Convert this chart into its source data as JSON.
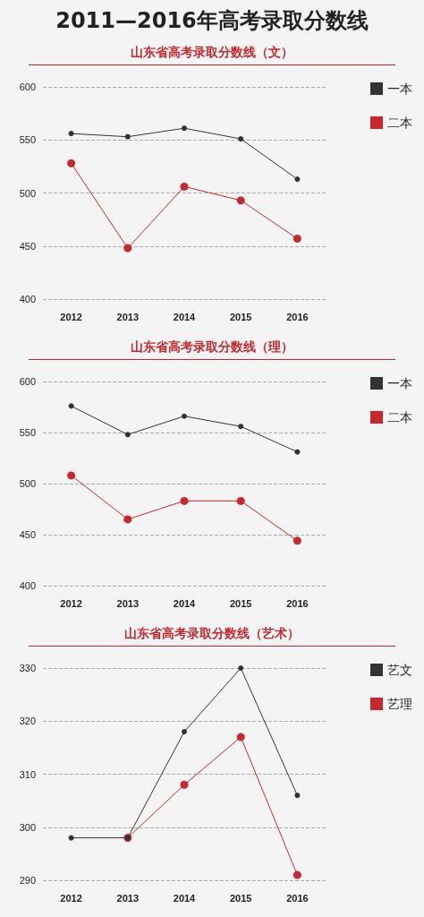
{
  "chart_data": [
    {
      "type": "line",
      "title": "2011—2016年高考录取分数线",
      "subtitle": "山东省高考录取分数线（文）",
      "categories": [
        "2012",
        "2013",
        "2014",
        "2015",
        "2016"
      ],
      "series": [
        {
          "name": "一本",
          "color": "#333333",
          "values": [
            556,
            553,
            561,
            551,
            513
          ]
        },
        {
          "name": "二本",
          "color": "#c8282d",
          "values": [
            528,
            448,
            506,
            493,
            457
          ]
        }
      ],
      "ylim": [
        400,
        600
      ],
      "yticks": [
        400,
        450,
        500,
        550,
        600
      ],
      "grid": "y",
      "legend": "right",
      "marker": "circle",
      "line_style": "solid"
    },
    {
      "type": "line",
      "title": "山东省高考录取分数线（理）",
      "categories": [
        "2012",
        "2013",
        "2014",
        "2015",
        "2016"
      ],
      "series": [
        {
          "name": "一本",
          "color": "#333333",
          "values": [
            576,
            548,
            566,
            556,
            531
          ]
        },
        {
          "name": "二本",
          "color": "#c8282d",
          "values": [
            508,
            465,
            483,
            483,
            444
          ]
        }
      ],
      "ylim": [
        400,
        600
      ],
      "yticks": [
        400,
        450,
        500,
        550,
        600
      ],
      "grid": "y",
      "legend": "right",
      "marker": "circle",
      "line_style": "solid"
    },
    {
      "type": "line",
      "title": "山东省高考录取分数线（艺术）",
      "categories": [
        "2012",
        "2013",
        "2014",
        "2015",
        "2016"
      ],
      "series": [
        {
          "name": "艺文",
          "color": "#333333",
          "values": [
            298,
            298,
            318,
            330,
            306
          ]
        },
        {
          "name": "艺理",
          "color": "#c8282d",
          "values": [
            null,
            298,
            308,
            317,
            291
          ]
        }
      ],
      "ylim": [
        290,
        330
      ],
      "yticks": [
        290,
        300,
        310,
        320,
        330
      ],
      "grid": "y",
      "legend": "right",
      "marker": "circle",
      "line_style": "solid"
    }
  ]
}
